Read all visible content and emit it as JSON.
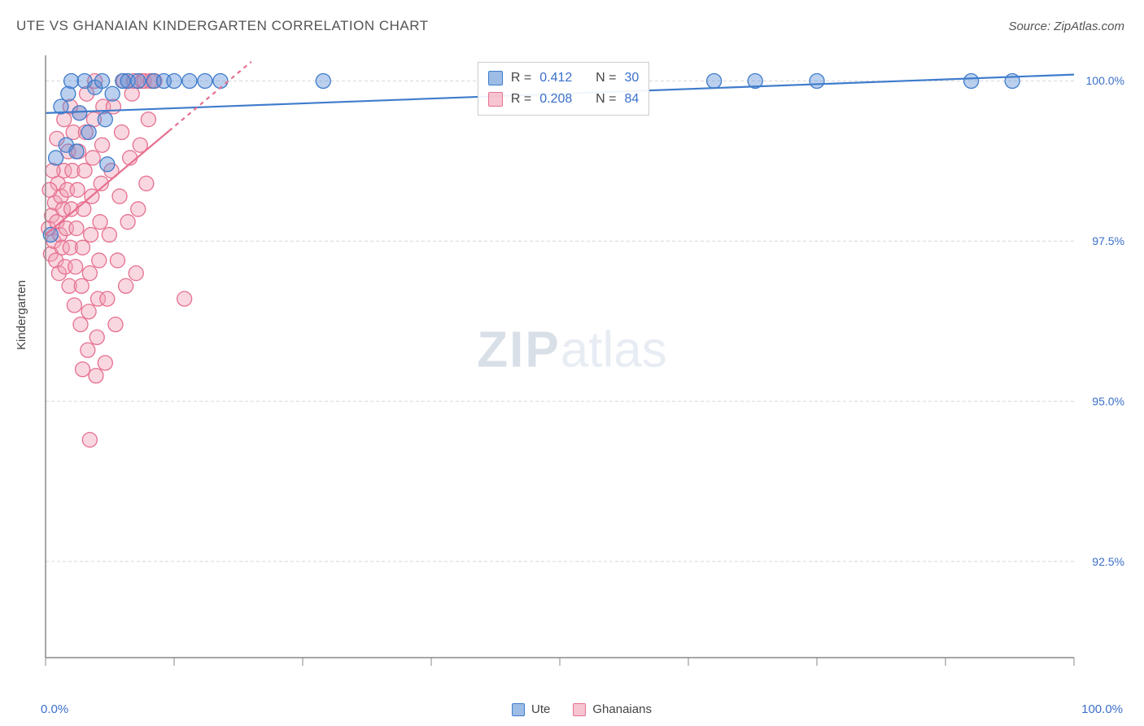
{
  "title": "UTE VS GHANAIAN KINDERGARTEN CORRELATION CHART",
  "source": "Source: ZipAtlas.com",
  "ylabel": "Kindergarten",
  "watermark": {
    "bold": "ZIP",
    "light": "atlas"
  },
  "chart": {
    "type": "scatter",
    "background_color": "#ffffff",
    "grid_color": "#d7d7d7",
    "grid_dash": "4 3",
    "axis_color": "#888888",
    "tick_color": "#888888",
    "xlim": [
      0,
      100
    ],
    "ylim": [
      91.0,
      100.4
    ],
    "x_tick_step": 12.5,
    "x_minor_step": 12.5,
    "ytick_values": [
      92.5,
      95.0,
      97.5,
      100.0
    ],
    "ytick_labels": [
      "92.5%",
      "95.0%",
      "97.5%",
      "100.0%"
    ],
    "xmin_label": "0.0%",
    "xmax_label": "100.0%",
    "marker_radius": 9,
    "marker_opacity": 0.42,
    "line_width": 2.2,
    "label_fontsize": 15,
    "tick_fontsize": 14,
    "value_color": "#3b6fc9"
  },
  "stats_legend": {
    "rows": [
      {
        "series": "ute",
        "r_label": "R =",
        "r": "0.412",
        "n_label": "N =",
        "n": "30"
      },
      {
        "series": "ghanaians",
        "r_label": "R =",
        "r": "0.208",
        "n_label": "N =",
        "n": "84"
      }
    ]
  },
  "bottom_legend": [
    {
      "key": "ute",
      "label": "Ute"
    },
    {
      "key": "ghanaians",
      "label": "Ghanaians"
    }
  ],
  "series": {
    "ute": {
      "label": "Ute",
      "fill_color": "#5b8fd6",
      "stroke_color": "#3f7ccc",
      "fit": {
        "x1": 0,
        "y1": 99.5,
        "x2": 100,
        "y2": 100.1
      },
      "points": [
        [
          0.5,
          97.6
        ],
        [
          1.0,
          98.8
        ],
        [
          1.5,
          99.6
        ],
        [
          2.0,
          99.0
        ],
        [
          2.2,
          99.8
        ],
        [
          2.5,
          100.0
        ],
        [
          3.0,
          98.9
        ],
        [
          3.3,
          99.5
        ],
        [
          3.8,
          100.0
        ],
        [
          4.2,
          99.2
        ],
        [
          4.8,
          99.9
        ],
        [
          5.5,
          100.0
        ],
        [
          6.0,
          98.7
        ],
        [
          6.5,
          99.8
        ],
        [
          7.5,
          100.0
        ],
        [
          8.0,
          100.0
        ],
        [
          9.0,
          100.0
        ],
        [
          10.5,
          100.0
        ],
        [
          11.5,
          100.0
        ],
        [
          12.5,
          100.0
        ],
        [
          14.0,
          100.0
        ],
        [
          15.5,
          100.0
        ],
        [
          17.0,
          100.0
        ],
        [
          27.0,
          100.0
        ],
        [
          65.0,
          100.0
        ],
        [
          69.0,
          100.0
        ],
        [
          75.0,
          100.0
        ],
        [
          90.0,
          100.0
        ],
        [
          94.0,
          100.0
        ],
        [
          5.8,
          99.4
        ]
      ]
    },
    "ghanaians": {
      "label": "Ghanaians",
      "fill_color": "#f19fb4",
      "stroke_color": "#e6708f",
      "fit": {
        "x1": 0,
        "y1": 97.6,
        "x2": 20,
        "y2": 100.3
      },
      "fit_dashed_after_x": 12,
      "points": [
        [
          0.3,
          97.7
        ],
        [
          0.5,
          97.3
        ],
        [
          0.6,
          97.9
        ],
        [
          0.8,
          97.5
        ],
        [
          0.9,
          98.1
        ],
        [
          1.0,
          97.2
        ],
        [
          1.1,
          97.8
        ],
        [
          1.2,
          98.4
        ],
        [
          1.3,
          97.0
        ],
        [
          1.4,
          97.6
        ],
        [
          1.5,
          98.2
        ],
        [
          1.6,
          97.4
        ],
        [
          1.7,
          98.0
        ],
        [
          1.8,
          98.6
        ],
        [
          1.9,
          97.1
        ],
        [
          2.0,
          97.7
        ],
        [
          2.1,
          98.3
        ],
        [
          2.2,
          98.9
        ],
        [
          2.3,
          96.8
        ],
        [
          2.4,
          97.4
        ],
        [
          2.5,
          98.0
        ],
        [
          2.6,
          98.6
        ],
        [
          2.7,
          99.2
        ],
        [
          2.8,
          96.5
        ],
        [
          2.9,
          97.1
        ],
        [
          3.0,
          97.7
        ],
        [
          3.1,
          98.3
        ],
        [
          3.2,
          98.9
        ],
        [
          3.3,
          99.5
        ],
        [
          3.4,
          96.2
        ],
        [
          3.5,
          96.8
        ],
        [
          3.6,
          97.4
        ],
        [
          3.7,
          98.0
        ],
        [
          3.8,
          98.6
        ],
        [
          3.9,
          99.2
        ],
        [
          4.0,
          99.8
        ],
        [
          4.1,
          95.8
        ],
        [
          4.2,
          96.4
        ],
        [
          4.3,
          97.0
        ],
        [
          4.4,
          97.6
        ],
        [
          4.5,
          98.2
        ],
        [
          4.6,
          98.8
        ],
        [
          4.7,
          99.4
        ],
        [
          4.8,
          100.0
        ],
        [
          4.9,
          95.4
        ],
        [
          5.0,
          96.0
        ],
        [
          5.1,
          96.6
        ],
        [
          5.2,
          97.2
        ],
        [
          5.3,
          97.8
        ],
        [
          5.4,
          98.4
        ],
        [
          5.5,
          99.0
        ],
        [
          5.6,
          99.6
        ],
        [
          5.8,
          95.6
        ],
        [
          6.0,
          96.6
        ],
        [
          6.2,
          97.6
        ],
        [
          6.4,
          98.6
        ],
        [
          6.6,
          99.6
        ],
        [
          6.8,
          96.2
        ],
        [
          7.0,
          97.2
        ],
        [
          7.2,
          98.2
        ],
        [
          7.4,
          99.2
        ],
        [
          7.6,
          100.0
        ],
        [
          7.8,
          96.8
        ],
        [
          8.0,
          97.8
        ],
        [
          8.2,
          98.8
        ],
        [
          8.4,
          99.8
        ],
        [
          8.6,
          100.0
        ],
        [
          8.8,
          97.0
        ],
        [
          9.0,
          98.0
        ],
        [
          9.2,
          99.0
        ],
        [
          9.4,
          100.0
        ],
        [
          9.6,
          100.0
        ],
        [
          9.8,
          98.4
        ],
        [
          10.0,
          99.4
        ],
        [
          10.2,
          100.0
        ],
        [
          10.6,
          100.0
        ],
        [
          13.5,
          96.6
        ],
        [
          3.6,
          95.5
        ],
        [
          4.3,
          94.4
        ],
        [
          1.8,
          99.4
        ],
        [
          2.4,
          99.6
        ],
        [
          0.7,
          98.6
        ],
        [
          1.1,
          99.1
        ],
        [
          0.4,
          98.3
        ]
      ]
    }
  }
}
